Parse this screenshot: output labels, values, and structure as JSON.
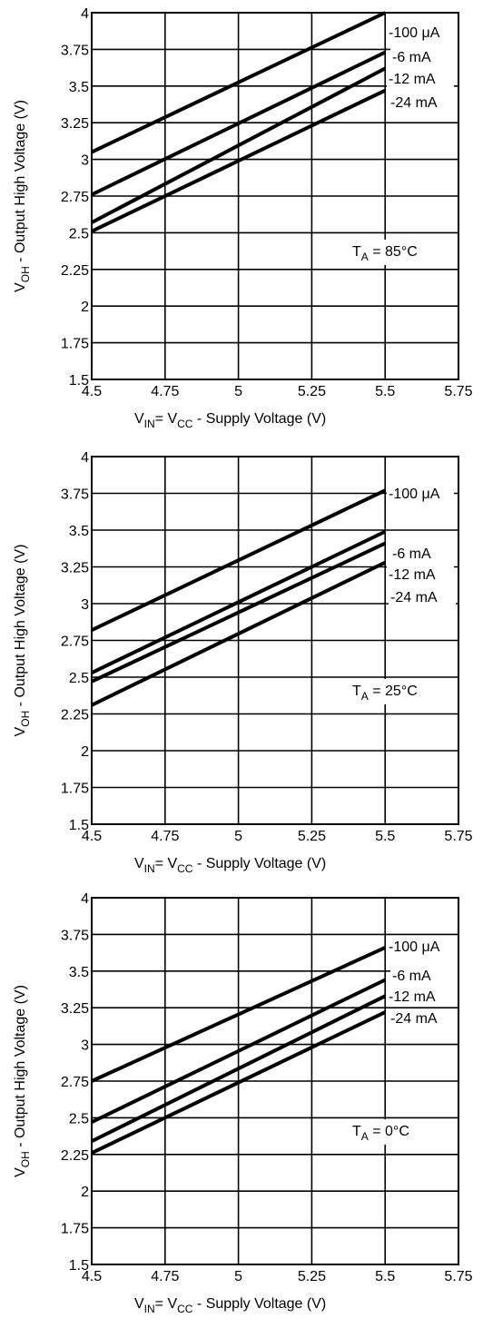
{
  "chart_data": [
    {
      "type": "line",
      "xlim": [
        4.5,
        5.75
      ],
      "ylim": [
        1.5,
        4
      ],
      "x_ticks": [
        "4.5",
        "4.75",
        "5",
        "5.25",
        "5.5",
        "5.75"
      ],
      "y_ticks": [
        "1.5",
        "1.75",
        "2",
        "2.25",
        "2.5",
        "2.75",
        "3",
        "3.25",
        "3.5",
        "3.75",
        "4"
      ],
      "grid": true,
      "ylabel": {
        "main1": "V",
        "sub": "OH",
        "main2": " - Output High  Voltage (V)"
      },
      "xlabel": {
        "a": "V",
        "a_sub": "IN",
        "eq": "= V",
        "b_sub": "CC",
        "rest": "  - Supply Voltage (V)"
      },
      "annotation": {
        "main": "T",
        "sub": "A",
        "rest": " = 85°C"
      },
      "series": [
        {
          "name": "-100 μA",
          "x": [
            4.5,
            5.5
          ],
          "y": [
            3.05,
            4.0
          ]
        },
        {
          "name": "-6 mA",
          "x": [
            4.5,
            5.5
          ],
          "y": [
            2.76,
            3.73
          ]
        },
        {
          "name": "-12 mA",
          "x": [
            4.5,
            5.5
          ],
          "y": [
            2.57,
            3.62
          ]
        },
        {
          "name": "-24 mA",
          "x": [
            4.5,
            5.5
          ],
          "y": [
            2.51,
            3.47
          ]
        }
      ]
    },
    {
      "type": "line",
      "xlim": [
        4.5,
        5.75
      ],
      "ylim": [
        1.5,
        4
      ],
      "x_ticks": [
        "4.5",
        "4.75",
        "5",
        "5.25",
        "5.5",
        "5.75"
      ],
      "y_ticks": [
        "1.5",
        "1.75",
        "2",
        "2.25",
        "2.5",
        "2.75",
        "3",
        "3.25",
        "3.5",
        "3.75",
        "4"
      ],
      "grid": true,
      "ylabel": {
        "main1": "V",
        "sub": "OH",
        "main2": " - Output High  Voltage (V)"
      },
      "xlabel": {
        "a": "V",
        "a_sub": "IN",
        "eq": "= V",
        "b_sub": "CC",
        "rest": "  - Supply Voltage (V)"
      },
      "annotation": {
        "main": "T",
        "sub": "A",
        "rest": " = 25°C"
      },
      "series": [
        {
          "name": "-100 μA",
          "x": [
            4.5,
            5.5
          ],
          "y": [
            2.82,
            3.77
          ]
        },
        {
          "name": "-6 mA",
          "x": [
            4.5,
            5.5
          ],
          "y": [
            2.53,
            3.49
          ]
        },
        {
          "name": "-12 mA",
          "x": [
            4.5,
            5.5
          ],
          "y": [
            2.47,
            3.41
          ]
        },
        {
          "name": "-24 mA",
          "x": [
            4.5,
            5.5
          ],
          "y": [
            2.31,
            3.28
          ]
        }
      ]
    },
    {
      "type": "line",
      "xlim": [
        4.5,
        5.75
      ],
      "ylim": [
        1.5,
        4
      ],
      "x_ticks": [
        "4.5",
        "4.75",
        "5",
        "5.25",
        "5.5",
        "5.75"
      ],
      "y_ticks": [
        "1.5",
        "1.75",
        "2",
        "2.25",
        "2.5",
        "2.75",
        "3",
        "3.25",
        "3.5",
        "3.75",
        "4"
      ],
      "grid": true,
      "ylabel": {
        "main1": "V",
        "sub": "OH",
        "main2": " - Output High  Voltage (V)"
      },
      "xlabel": {
        "a": "V",
        "a_sub": "IN",
        "eq": "= V",
        "b_sub": "CC",
        "rest": "  - Supply Voltage (V)"
      },
      "annotation": {
        "main": "T",
        "sub": "A",
        "rest": " = 0°C"
      },
      "series": [
        {
          "name": "-100 μA",
          "x": [
            4.5,
            5.5
          ],
          "y": [
            2.75,
            3.66
          ]
        },
        {
          "name": "-6 mA",
          "x": [
            4.5,
            5.5
          ],
          "y": [
            2.47,
            3.44
          ]
        },
        {
          "name": "-12 mA",
          "x": [
            4.5,
            5.5
          ],
          "y": [
            2.34,
            3.33
          ]
        },
        {
          "name": "-24 mA",
          "x": [
            4.5,
            5.5
          ],
          "y": [
            2.26,
            3.22
          ]
        }
      ]
    }
  ]
}
